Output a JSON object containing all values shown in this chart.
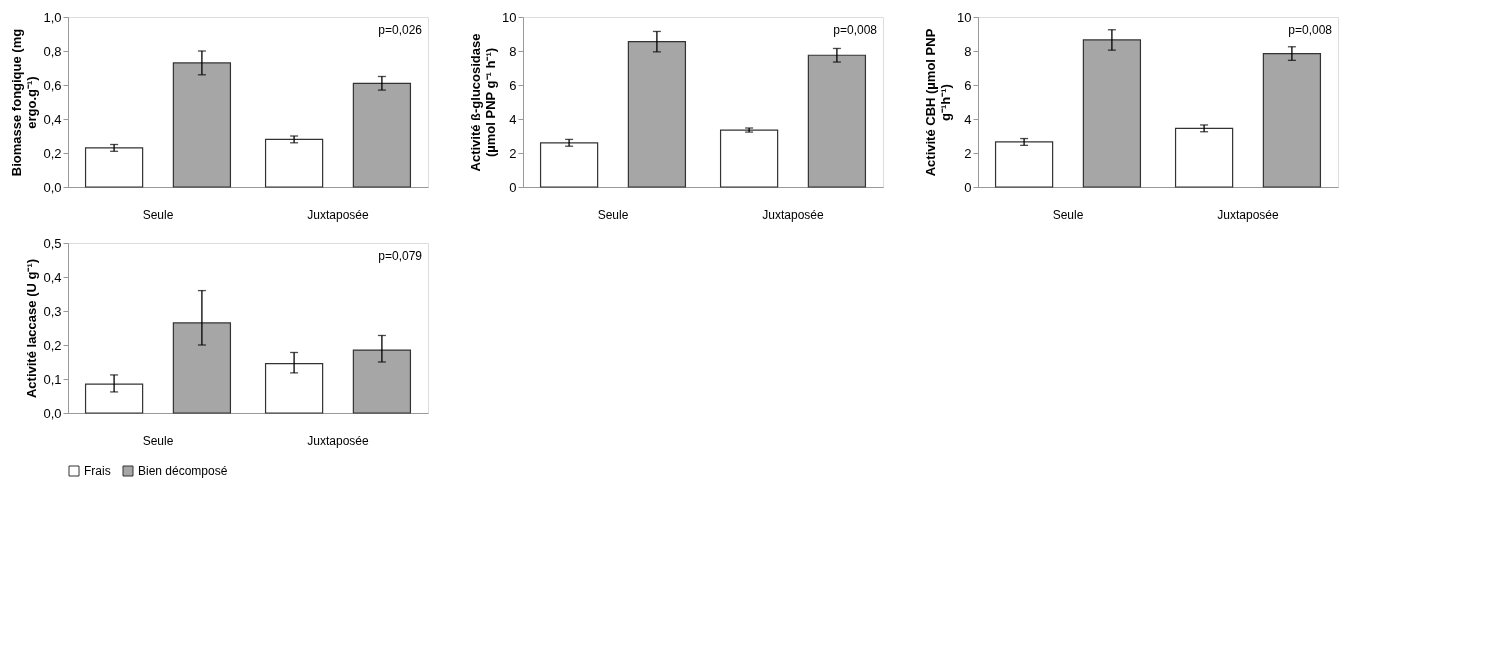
{
  "chart_data": [
    {
      "type": "bar",
      "ylabel": "Biomasse fongique (mg ergo.g⁻¹)",
      "categories": [
        "Seule",
        "Juxtaposée"
      ],
      "ylim": [
        0,
        1.0
      ],
      "yticks": [
        {
          "value": 0,
          "label": "0,0"
        },
        {
          "value": 0.2,
          "label": "0,2"
        },
        {
          "value": 0.4,
          "label": "0,4"
        },
        {
          "value": 0.6,
          "label": "0,6"
        },
        {
          "value": 0.8,
          "label": "0,8"
        },
        {
          "value": 1.0,
          "label": "1,0"
        }
      ],
      "annotations": [
        "p=0,026"
      ],
      "series": [
        {
          "color": "#ffffff",
          "values": [
            0.23,
            0.28
          ],
          "errors": [
            0.02,
            0.02
          ]
        },
        {
          "color": "#a6a6a6",
          "values": [
            0.73,
            0.61
          ],
          "errors": [
            0.07,
            0.04
          ]
        }
      ]
    },
    {
      "type": "bar",
      "ylabel": "Activité ß-glucosidase (µmol PNP g⁻¹ h⁻¹)",
      "categories": [
        "Seule",
        "Juxtaposée"
      ],
      "ylim": [
        0,
        10
      ],
      "yticks": [
        0,
        2,
        4,
        6,
        8,
        10
      ],
      "annotations": [
        "p=0,008"
      ],
      "series": [
        {
          "color": "#ffffff",
          "values": [
            2.6,
            3.35
          ],
          "errors": [
            0.2,
            0.12
          ]
        },
        {
          "color": "#a6a6a6",
          "values": [
            8.55,
            7.75
          ],
          "errors": [
            0.6,
            0.4
          ]
        }
      ]
    },
    {
      "type": "bar",
      "ylabel": "Activité CBH (µmol PNP g⁻¹h⁻¹)",
      "categories": [
        "Seule",
        "Juxtaposée"
      ],
      "ylim": [
        0,
        10
      ],
      "yticks": [
        0,
        2,
        4,
        6,
        8,
        10
      ],
      "annotations": [
        "p=0,008"
      ],
      "series": [
        {
          "color": "#ffffff",
          "values": [
            2.65,
            3.45
          ],
          "errors": [
            0.2,
            0.2
          ]
        },
        {
          "color": "#a6a6a6",
          "values": [
            8.65,
            7.85
          ],
          "errors": [
            0.6,
            0.4
          ]
        }
      ]
    },
    {
      "type": "bar",
      "ylabel": "Activité laccase (U g⁻¹)",
      "categories": [
        "Seule",
        "Juxtaposée"
      ],
      "ylim": [
        0,
        0.5
      ],
      "yticks": [
        {
          "value": 0,
          "label": "0,0"
        },
        {
          "value": 0.1,
          "label": "0,1"
        },
        {
          "value": 0.2,
          "label": "0,2"
        },
        {
          "value": 0.3,
          "label": "0,3"
        },
        {
          "value": 0.4,
          "label": "0,4"
        },
        {
          "value": 0.5,
          "label": "0,5"
        }
      ],
      "annotations": [
        "p=0,079"
      ],
      "legend": "bottom",
      "series": [
        {
          "name": "Frais",
          "color": "#ffffff",
          "values": [
            0.085,
            0.145
          ],
          "errors": [
            [
              0.062,
              0.112
            ],
            [
              0.118,
              0.178
            ]
          ]
        },
        {
          "name": "Bien décomposé",
          "color": "#a6a6a6",
          "values": [
            0.265,
            0.185
          ],
          "errors": [
            [
              0.2,
              0.36
            ],
            [
              0.15,
              0.228
            ]
          ]
        }
      ]
    }
  ]
}
